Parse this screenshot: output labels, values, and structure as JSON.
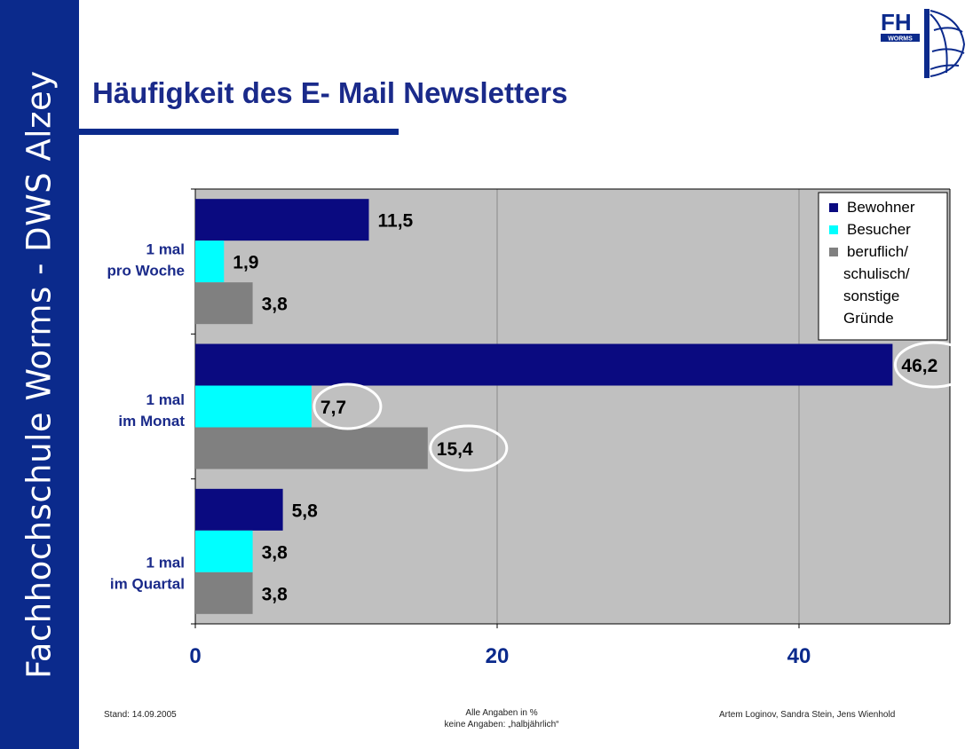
{
  "sidebar": {
    "text": "Fachhochschule Worms - DWS Alzey"
  },
  "logo": {
    "letters": "FH",
    "sub": "WORMS"
  },
  "slide": {
    "title": "Häufigkeit des E- Mail Newsletters"
  },
  "footer": {
    "left": "Stand: 14.09.2005",
    "center_line1": "Alle Angaben in %",
    "center_line2": "keine Angaben: „halbjährlich“",
    "right": "Artem Loginov, Sandra Stein, Jens Wienhold"
  },
  "colors": {
    "navy": "#0b2a8c",
    "bewohner": "#0a0a80",
    "besucher": "#00ffff",
    "beruflich": "#808080",
    "plot_bg": "#c0c0c0",
    "label": "#1a2a8a"
  },
  "chart_data": {
    "type": "bar",
    "orientation": "horizontal",
    "categories": [
      [
        "1 mal",
        "pro Woche"
      ],
      [
        "1 mal",
        "im Monat"
      ],
      [
        "1 mal",
        "im Quartal"
      ]
    ],
    "series": [
      {
        "name": "Bewohner",
        "values": [
          11.5,
          46.2,
          5.8
        ],
        "labels": [
          "11,5",
          "46,2",
          "5,8"
        ],
        "color": "#0a0a80"
      },
      {
        "name": "Besucher",
        "values": [
          1.9,
          7.7,
          3.8
        ],
        "labels": [
          "1,9",
          "7,7",
          "3,8"
        ],
        "color": "#00ffff"
      },
      {
        "name": "beruflich/ schulisch/ sonstige Gründe",
        "legend_lines": [
          "beruflich/",
          "schulisch/",
          "sonstige",
          "Gründe"
        ],
        "values": [
          3.8,
          15.4,
          3.8
        ],
        "labels": [
          "3,8",
          "15,4",
          "3,8"
        ],
        "color": "#808080"
      }
    ],
    "xlim": [
      0,
      50
    ],
    "xticks": [
      0,
      20,
      40
    ],
    "xtick_labels": [
      "0",
      "20",
      "40"
    ],
    "grid": "vertical",
    "legend": "top-right",
    "highlighted": [
      {
        "series": 0,
        "category": 1
      },
      {
        "series": 1,
        "category": 1
      },
      {
        "series": 2,
        "category": 1
      }
    ]
  }
}
